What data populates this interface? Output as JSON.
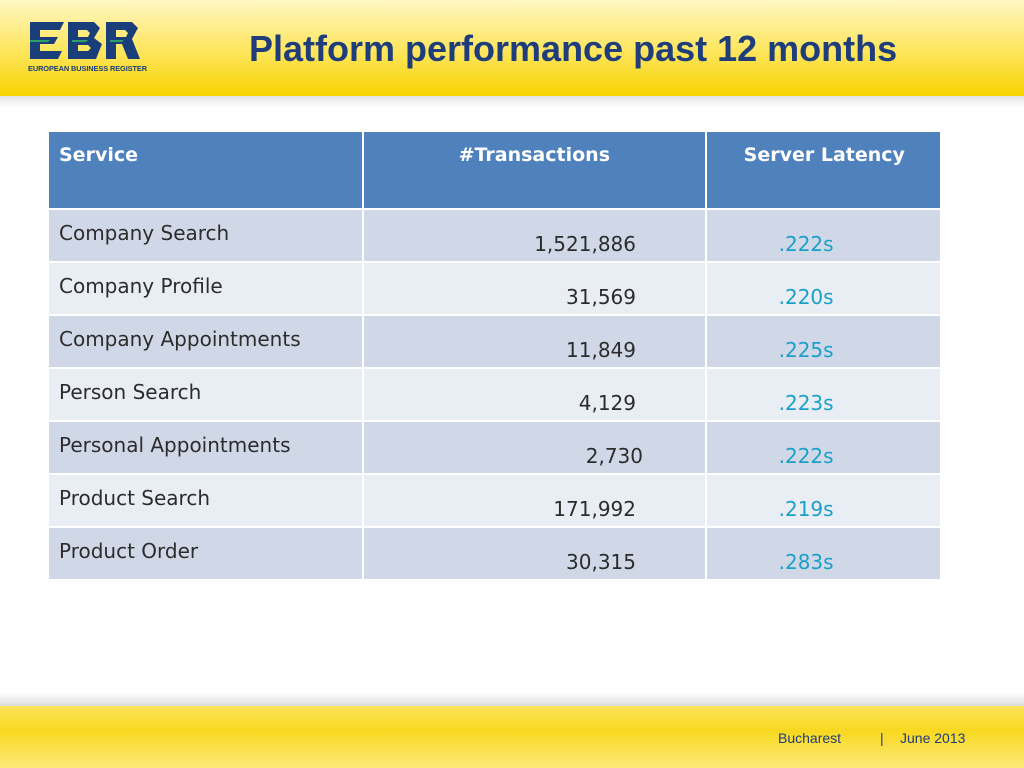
{
  "logo": {
    "text": "EUROPEAN BUSINESS REGISTER",
    "color": "#1a3e7a"
  },
  "title": "Platform performance past 12 months",
  "table": {
    "headers": {
      "service": "Service",
      "transactions": "#Transactions",
      "latency": "Server Latency"
    },
    "rows": [
      {
        "service": "Company Search",
        "transactions": "1,521,886",
        "latency": ".222s"
      },
      {
        "service": "Company Profile",
        "transactions": "31,569",
        "latency": ".220s"
      },
      {
        "service": "Company Appointments",
        "transactions": "11,849",
        "latency": ".225s"
      },
      {
        "service": "Person Search",
        "transactions": "4,129",
        "latency": ".223s"
      },
      {
        "service": "Personal Appointments",
        "transactions": "2,730",
        "latency": ".222s"
      },
      {
        "service": "Product Search",
        "transactions": "171,992",
        "latency": ".219s"
      },
      {
        "service": "Product Order",
        "transactions": "30,315",
        "latency": ".283s"
      }
    ]
  },
  "footer": {
    "city": "Bucharest",
    "separator": "|",
    "date": "June 2013"
  },
  "colors": {
    "header_blue": "#4f81bd",
    "title_navy": "#1f3d7a",
    "latency_cyan": "#1aa0c8",
    "band_yellow": "#f8d300"
  }
}
